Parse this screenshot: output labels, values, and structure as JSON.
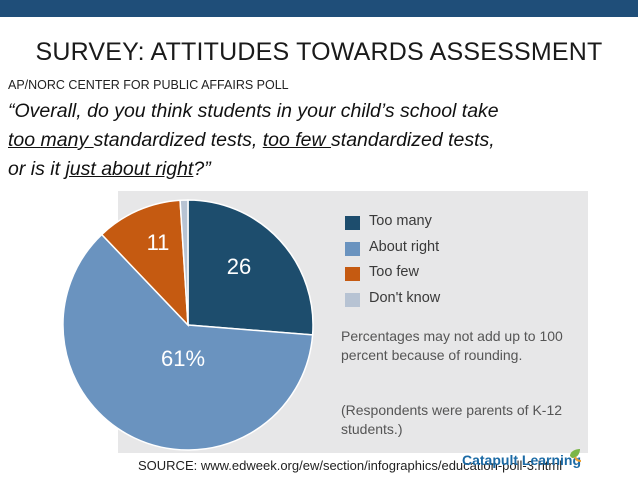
{
  "slide": {
    "title": "SURVEY: ATTITUDES TOWARDS ASSESSMENT",
    "subtitle": "AP/NORC CENTER FOR PUBLIC AFFAIRS POLL",
    "question": {
      "open_quote": "“Overall, do you think students in your child’s school take",
      "opt1": "too many ",
      "mid1": "standardized tests, ",
      "opt2": "too few ",
      "mid2": "standardized tests,",
      "line3_start": "or is it ",
      "opt3": "just about right",
      "close": "?”"
    },
    "source": "SOURCE: www.edweek.org/ew/section/infographics/education-poll-3.html",
    "brand": "Catapult Learning",
    "colors": {
      "bar": "#1f4e79",
      "panel": "#e7e7e8"
    }
  },
  "chart_data": {
    "type": "pie",
    "title": "",
    "series": [
      {
        "name": "Too many",
        "value": 26,
        "label": "26",
        "color": "#1d4d6d"
      },
      {
        "name": "About right",
        "value": 61,
        "label": "61%",
        "color": "#6a93bf"
      },
      {
        "name": "Too few",
        "value": 11,
        "label": "11",
        "color": "#c55a11"
      },
      {
        "name": "Don't know",
        "value": 1,
        "label": "",
        "color": "#b7c3d3"
      }
    ],
    "legend": [
      "Too many",
      "About right",
      "Too few",
      "Don't know"
    ],
    "legend_position": "right",
    "note": "Percentages may not add up to 100 percent because of rounding.",
    "note2": "(Respondents were parents of K-12 students.)"
  }
}
